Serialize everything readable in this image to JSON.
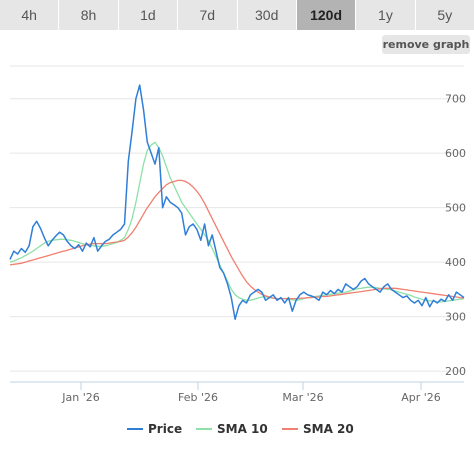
{
  "tabs": [
    {
      "label": "4h",
      "active": false
    },
    {
      "label": "8h",
      "active": false
    },
    {
      "label": "1d",
      "active": false
    },
    {
      "label": "7d",
      "active": false
    },
    {
      "label": "30d",
      "active": false
    },
    {
      "label": "120d",
      "active": true
    },
    {
      "label": "1y",
      "active": false
    },
    {
      "label": "5y",
      "active": false
    }
  ],
  "remove_graph_label": "remove graph",
  "chart_data": {
    "type": "line",
    "x_ticks": [
      "Jan '26",
      "Feb '26",
      "Mar '26",
      "Apr '26"
    ],
    "y_ticks": [
      200,
      300,
      400,
      500,
      600,
      700
    ],
    "ylim": [
      180,
      760
    ],
    "grid": true,
    "legend_position": "bottom",
    "series": [
      {
        "name": "Price",
        "color": "#2f7ed8",
        "values": [
          405,
          420,
          415,
          425,
          418,
          430,
          465,
          475,
          462,
          445,
          430,
          440,
          448,
          455,
          450,
          438,
          430,
          425,
          432,
          420,
          435,
          428,
          445,
          420,
          430,
          438,
          442,
          450,
          455,
          460,
          470,
          585,
          640,
          700,
          725,
          680,
          620,
          600,
          580,
          610,
          500,
          520,
          510,
          505,
          500,
          490,
          450,
          465,
          470,
          460,
          440,
          470,
          430,
          450,
          420,
          390,
          380,
          360,
          335,
          295,
          320,
          330,
          325,
          340,
          345,
          350,
          345,
          330,
          335,
          340,
          330,
          335,
          325,
          335,
          310,
          330,
          340,
          345,
          340,
          338,
          335,
          330,
          345,
          340,
          348,
          342,
          350,
          345,
          360,
          355,
          350,
          355,
          365,
          370,
          360,
          355,
          350,
          345,
          355,
          360,
          350,
          345,
          340,
          335,
          338,
          330,
          325,
          330,
          320,
          335,
          318,
          330,
          325,
          332,
          328,
          340,
          330,
          345,
          340,
          335
        ]
      },
      {
        "name": "SMA 10",
        "color": "#8ee0a8",
        "values": [
          400,
          402,
          405,
          408,
          412,
          416,
          420,
          425,
          430,
          435,
          438,
          440,
          441,
          442,
          442,
          441,
          440,
          438,
          436,
          434,
          432,
          430,
          430,
          429,
          429,
          430,
          432,
          434,
          436,
          440,
          445,
          460,
          480,
          510,
          545,
          580,
          605,
          615,
          620,
          610,
          595,
          575,
          555,
          540,
          525,
          510,
          500,
          490,
          480,
          470,
          460,
          450,
          440,
          425,
          410,
          395,
          380,
          365,
          350,
          340,
          335,
          332,
          330,
          330,
          332,
          334,
          336,
          336,
          335,
          334,
          333,
          333,
          333,
          332,
          331,
          330,
          331,
          333,
          335,
          336,
          337,
          338,
          339,
          340,
          341,
          342,
          343,
          344,
          345,
          347,
          349,
          351,
          352,
          353,
          354,
          354,
          353,
          352,
          351,
          350,
          349,
          347,
          345,
          343,
          341,
          339,
          336,
          334,
          332,
          330,
          329,
          328,
          327,
          327,
          328,
          329,
          330,
          331,
          332,
          333
        ]
      },
      {
        "name": "SMA 20",
        "color": "#f08070",
        "values": [
          395,
          396,
          397,
          398,
          400,
          402,
          404,
          406,
          408,
          410,
          412,
          414,
          416,
          418,
          420,
          422,
          424,
          426,
          428,
          430,
          432,
          433,
          434,
          434,
          434,
          434,
          435,
          436,
          437,
          438,
          440,
          446,
          454,
          464,
          476,
          488,
          500,
          510,
          520,
          528,
          535,
          542,
          546,
          548,
          550,
          550,
          548,
          544,
          538,
          530,
          520,
          508,
          494,
          480,
          466,
          452,
          438,
          424,
          410,
          398,
          386,
          374,
          364,
          356,
          350,
          345,
          341,
          338,
          336,
          334,
          333,
          333,
          333,
          333,
          333,
          333,
          334,
          334,
          335,
          335,
          336,
          336,
          337,
          337,
          338,
          339,
          340,
          341,
          342,
          343,
          344,
          345,
          346,
          347,
          348,
          349,
          350,
          351,
          352,
          352,
          352,
          352,
          351,
          350,
          349,
          348,
          347,
          346,
          345,
          344,
          343,
          342,
          341,
          340,
          339,
          338,
          337,
          336,
          335,
          334
        ]
      }
    ]
  }
}
